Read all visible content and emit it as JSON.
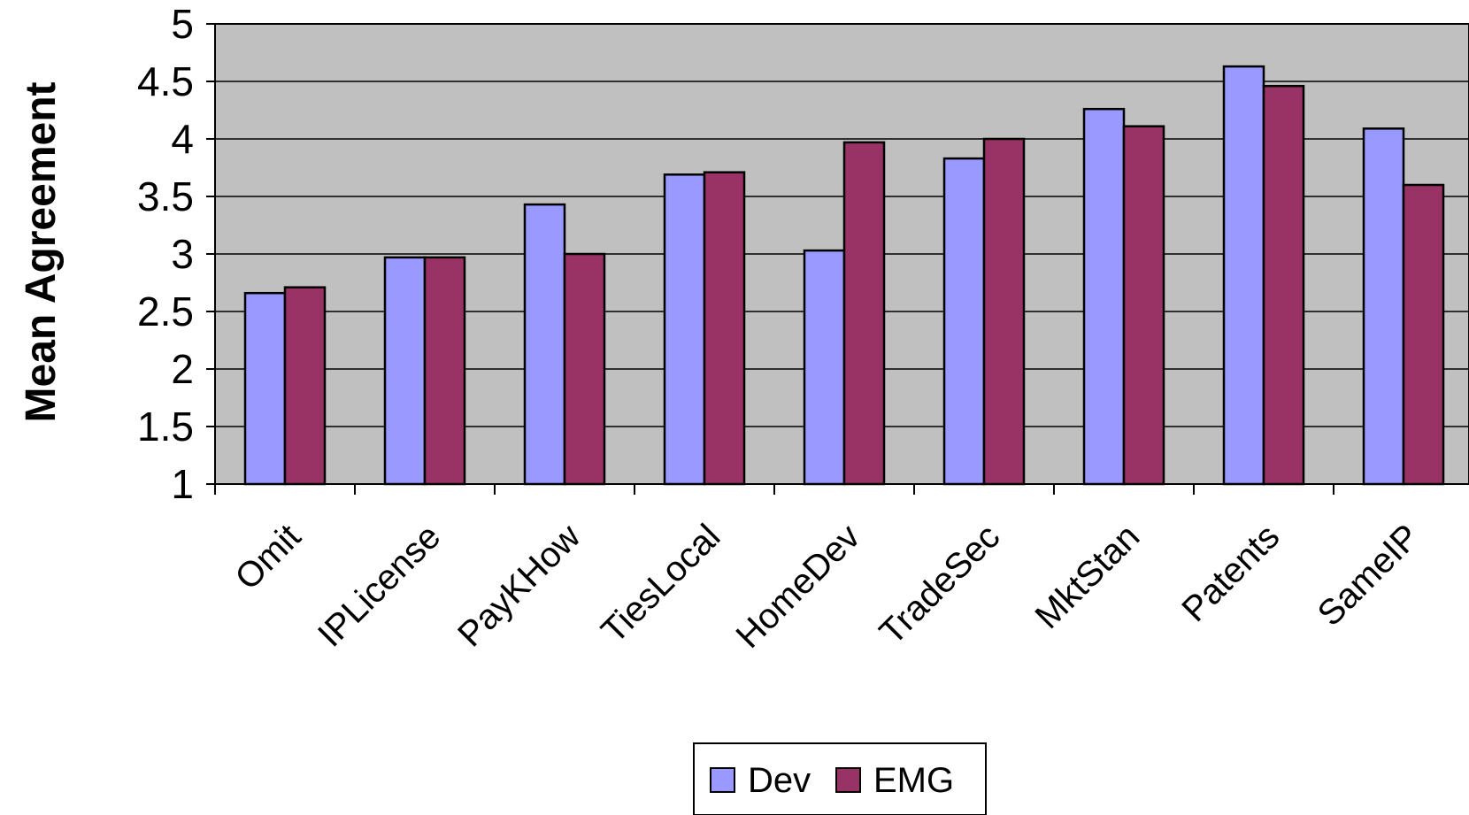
{
  "chart_data": {
    "type": "bar",
    "title": "",
    "xlabel": "",
    "ylabel": "Mean Agreement",
    "ylim": [
      1,
      5
    ],
    "yticks": [
      "1",
      "1.5",
      "2",
      "2.5",
      "3",
      "3.5",
      "4",
      "4.5",
      "5"
    ],
    "grid": true,
    "plot_background": "#c0c0c0",
    "legend_position": "bottom",
    "categories": [
      "Omit",
      "IPLicense",
      "PayKHow",
      "TiesLocal",
      "HomeDev",
      "TradeSec",
      "MktStan",
      "Patents",
      "SameIP"
    ],
    "series": [
      {
        "name": "Dev",
        "color": "#9999ff",
        "values": [
          2.66,
          2.97,
          3.43,
          3.69,
          3.03,
          3.83,
          4.26,
          4.63,
          4.09
        ]
      },
      {
        "name": "EMG",
        "color": "#993366",
        "values": [
          2.71,
          2.97,
          3.0,
          3.71,
          3.97,
          4.0,
          4.11,
          4.46,
          3.6
        ]
      }
    ]
  }
}
